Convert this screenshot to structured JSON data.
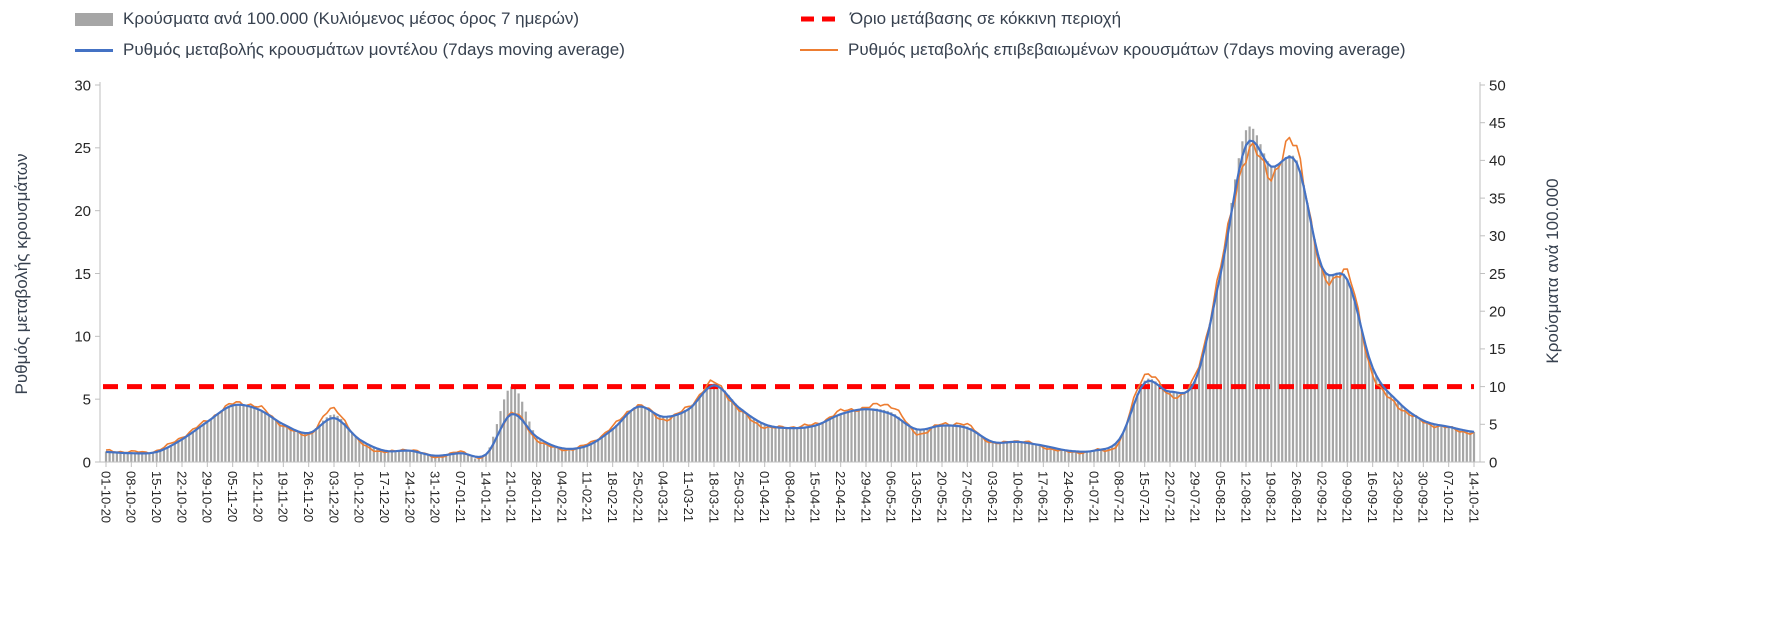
{
  "legend": {
    "bars": "Κρούσματα ανά 100.000 (Κυλιόμενος μέσος όρος 7 ημερών)",
    "threshold": "Όριο μετάβασης σε κόκκινη περιοχή",
    "model": "Ρυθμός μεταβολής κρουσμάτων μοντέλου (7days moving average)",
    "confirmed": "Ρυθμός μεταβολής επιβεβαιωμένων κρουσμάτων (7days moving average)"
  },
  "axes": {
    "left_title": "Ρυθμός μεταβολής κρουσμάτων",
    "right_title": "Κρούσματα ανά 100.000"
  },
  "colors": {
    "bars": "#a6a6a6",
    "model": "#4472c4",
    "confirmed": "#ed7d31",
    "threshold": "#ff0000",
    "axis_line": "#bfbfbf",
    "tick_text": "#262626",
    "legend_text": "#37414f"
  },
  "chart_data": {
    "type": "combo-bar-line",
    "grid": false,
    "legend_position": "top",
    "categories": [
      "01-10-20",
      "08-10-20",
      "15-10-20",
      "22-10-20",
      "29-10-20",
      "05-11-20",
      "12-11-20",
      "19-11-20",
      "26-11-20",
      "03-12-20",
      "10-12-20",
      "17-12-20",
      "24-12-20",
      "31-12-20",
      "07-01-21",
      "14-01-21",
      "21-01-21",
      "28-01-21",
      "04-02-21",
      "11-02-21",
      "18-02-21",
      "25-02-21",
      "04-03-21",
      "11-03-21",
      "18-03-21",
      "25-03-21",
      "01-04-21",
      "08-04-21",
      "15-04-21",
      "22-04-21",
      "29-04-21",
      "06-05-21",
      "13-05-21",
      "20-05-21",
      "27-05-21",
      "03-06-21",
      "10-06-21",
      "17-06-21",
      "24-06-21",
      "01-07-21",
      "08-07-21",
      "15-07-21",
      "22-07-21",
      "29-07-21",
      "05-08-21",
      "12-08-21",
      "19-08-21",
      "26-08-21",
      "02-09-21",
      "09-09-21",
      "16-09-21",
      "23-09-21",
      "30-09-21",
      "07-10-21",
      "14-10-21"
    ],
    "left_axis": {
      "label": "Ρυθμός μεταβολής κρουσμάτων",
      "range": [
        0,
        30
      ],
      "ticks": [
        0,
        5,
        10,
        15,
        20,
        25,
        30
      ]
    },
    "right_axis": {
      "label": "Κρούσματα ανά 100.000",
      "range": [
        0,
        50
      ],
      "ticks": [
        0,
        5,
        10,
        15,
        20,
        25,
        30,
        35,
        40,
        45,
        50
      ]
    },
    "threshold": {
      "name": "Όριο μετάβασης σε κόκκινη περιοχή",
      "axis": "right",
      "value": 10,
      "style": "dashed",
      "color": "#ff0000"
    },
    "series": [
      {
        "name": "Κρούσματα ανά 100.000 (Κυλιόμενος μέσος όρος 7 ημερών)",
        "type": "bar",
        "axis": "right",
        "color": "#a6a6a6",
        "values": [
          1.4,
          1.3,
          1.4,
          3.1,
          5.4,
          7.6,
          7.1,
          5.0,
          3.9,
          6.3,
          3.0,
          1.5,
          1.6,
          0.9,
          1.2,
          1.0,
          10.0,
          3.4,
          1.9,
          2.3,
          4.5,
          7.4,
          6.0,
          7.2,
          10.4,
          7.3,
          5.0,
          4.6,
          4.9,
          6.4,
          7.1,
          6.6,
          4.3,
          4.9,
          4.7,
          2.7,
          2.8,
          2.2,
          1.5,
          1.5,
          3.0,
          10.8,
          9.4,
          11.0,
          25.5,
          44.0,
          39.3,
          40.0,
          26.0,
          24.3,
          12.5,
          8.0,
          5.6,
          4.7,
          4.0
        ]
      },
      {
        "name": "Ρυθμός μεταβολής κρουσμάτων μοντέλου (7days moving average)",
        "type": "line",
        "axis": "left",
        "color": "#4472c4",
        "values": [
          0.8,
          0.7,
          0.8,
          1.8,
          3.2,
          4.5,
          4.2,
          3.0,
          2.3,
          3.5,
          1.8,
          0.9,
          0.9,
          0.5,
          0.7,
          0.6,
          3.8,
          2.0,
          1.1,
          1.3,
          2.6,
          4.4,
          3.6,
          4.2,
          6.1,
          4.3,
          3.0,
          2.7,
          2.9,
          3.8,
          4.2,
          3.8,
          2.6,
          2.9,
          2.7,
          1.6,
          1.6,
          1.3,
          0.9,
          0.9,
          1.8,
          6.3,
          5.6,
          6.5,
          15.0,
          25.2,
          23.5,
          23.8,
          15.5,
          14.5,
          7.5,
          4.8,
          3.3,
          2.8,
          2.4
        ]
      },
      {
        "name": "Ρυθμός μεταβολής επιβεβαιωμένων κρουσμάτων (7days moving average)",
        "type": "line",
        "axis": "left",
        "color": "#ed7d31",
        "values": [
          0.9,
          0.8,
          0.9,
          2.0,
          3.3,
          4.6,
          4.4,
          2.9,
          2.2,
          4.2,
          1.6,
          0.8,
          1.0,
          0.4,
          0.8,
          0.5,
          3.9,
          1.8,
          1.0,
          1.4,
          2.8,
          4.5,
          3.4,
          4.4,
          6.3,
          4.1,
          2.8,
          2.8,
          3.0,
          4.0,
          4.3,
          4.5,
          2.3,
          3.0,
          2.9,
          1.5,
          1.7,
          1.2,
          0.8,
          0.9,
          1.6,
          7.0,
          5.3,
          6.8,
          15.5,
          24.5,
          23.0,
          25.0,
          14.8,
          15.0,
          7.0,
          4.5,
          3.2,
          2.7,
          2.3
        ]
      }
    ]
  }
}
